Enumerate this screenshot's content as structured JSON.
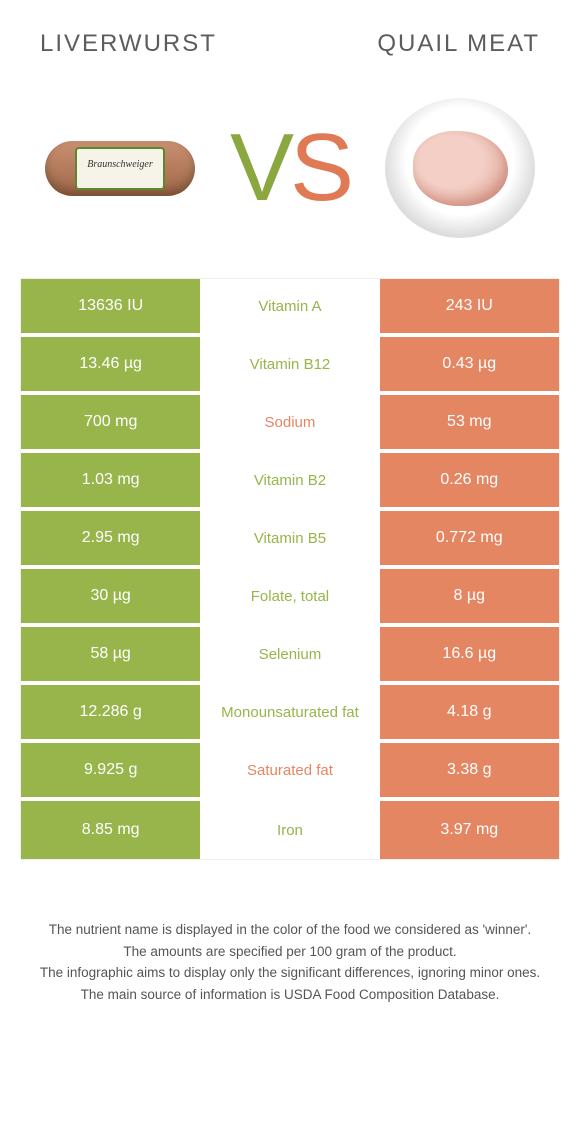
{
  "colors": {
    "left": "#97b54a",
    "right": "#e58663"
  },
  "titles": {
    "left": "LIVERWURST",
    "right": "QUAIL MEAT"
  },
  "sausage_label": "Braunschweiger",
  "vs": {
    "v": "V",
    "s": "S"
  },
  "rows": [
    {
      "left": "13636 IU",
      "name": "Vitamin A",
      "right": "243 IU",
      "winner": "left"
    },
    {
      "left": "13.46 µg",
      "name": "Vitamin B12",
      "right": "0.43 µg",
      "winner": "left"
    },
    {
      "left": "700 mg",
      "name": "Sodium",
      "right": "53 mg",
      "winner": "right"
    },
    {
      "left": "1.03 mg",
      "name": "Vitamin B2",
      "right": "0.26 mg",
      "winner": "left"
    },
    {
      "left": "2.95 mg",
      "name": "Vitamin B5",
      "right": "0.772 mg",
      "winner": "left"
    },
    {
      "left": "30 µg",
      "name": "Folate, total",
      "right": "8 µg",
      "winner": "left"
    },
    {
      "left": "58 µg",
      "name": "Selenium",
      "right": "16.6 µg",
      "winner": "left"
    },
    {
      "left": "12.286 g",
      "name": "Monounsaturated fat",
      "right": "4.18 g",
      "winner": "left"
    },
    {
      "left": "9.925 g",
      "name": "Saturated fat",
      "right": "3.38 g",
      "winner": "right"
    },
    {
      "left": "8.85 mg",
      "name": "Iron",
      "right": "3.97 mg",
      "winner": "left"
    }
  ],
  "footnotes": [
    "The nutrient name is displayed in the color of the food we considered as 'winner'.",
    "The amounts are specified per 100 gram of the product.",
    "The infographic aims to display only the significant differences, ignoring minor ones.",
    "The main source of information is USDA Food Composition Database."
  ]
}
